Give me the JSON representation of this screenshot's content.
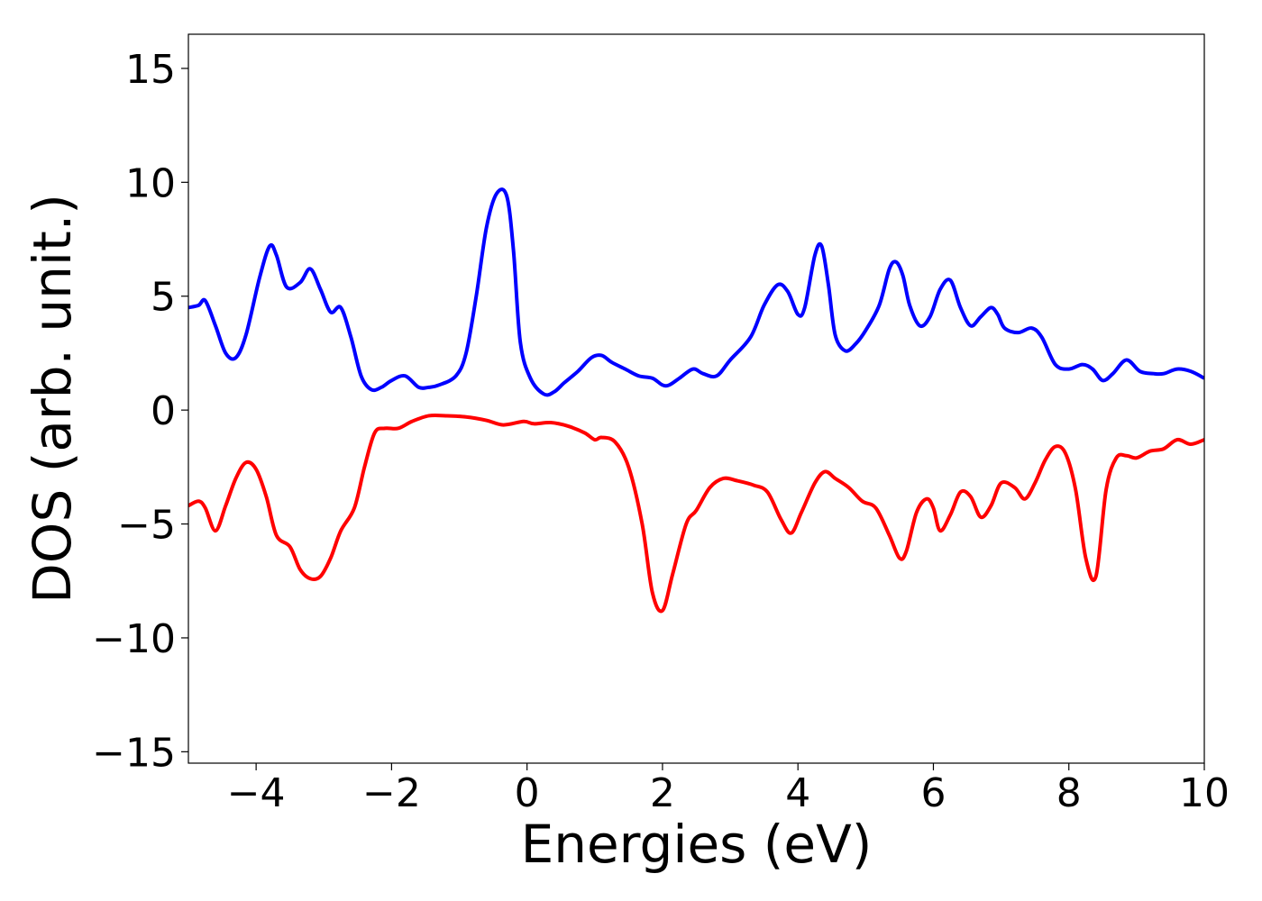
{
  "chart_data": {
    "type": "line",
    "title": "",
    "xlabel": "Energies (eV)",
    "ylabel": "DOS (arb. unit.)",
    "xlim": [
      -5,
      10
    ],
    "ylim": [
      -15.5,
      16.5
    ],
    "grid": false,
    "legend": "none",
    "xticks": [
      {
        "value": -4,
        "label": "−4"
      },
      {
        "value": -2,
        "label": "−2"
      },
      {
        "value": 0,
        "label": "0"
      },
      {
        "value": 2,
        "label": "2"
      },
      {
        "value": 4,
        "label": "4"
      },
      {
        "value": 6,
        "label": "6"
      },
      {
        "value": 8,
        "label": "8"
      },
      {
        "value": 10,
        "label": "10"
      }
    ],
    "yticks": [
      {
        "value": -15,
        "label": "−15"
      },
      {
        "value": -10,
        "label": "−10"
      },
      {
        "value": -5,
        "label": "−5"
      },
      {
        "value": 0,
        "label": "0"
      },
      {
        "value": 5,
        "label": "5"
      },
      {
        "value": 10,
        "label": "10"
      },
      {
        "value": 15,
        "label": "15"
      }
    ],
    "series": [
      {
        "color": "#0000ff",
        "x": [
          -5.0,
          -4.85,
          -4.75,
          -4.6,
          -4.45,
          -4.3,
          -4.15,
          -3.95,
          -3.8,
          -3.7,
          -3.55,
          -3.35,
          -3.2,
          -3.05,
          -2.9,
          -2.75,
          -2.6,
          -2.45,
          -2.3,
          -2.15,
          -2.0,
          -1.8,
          -1.6,
          -1.45,
          -1.3,
          -1.05,
          -0.9,
          -0.75,
          -0.6,
          -0.45,
          -0.3,
          -0.2,
          -0.1,
          0.05,
          0.25,
          0.4,
          0.55,
          0.75,
          0.95,
          1.1,
          1.25,
          1.45,
          1.65,
          1.85,
          2.0,
          2.1,
          2.25,
          2.45,
          2.6,
          2.8,
          3.0,
          3.3,
          3.5,
          3.7,
          3.85,
          4.0,
          4.1,
          4.25,
          4.35,
          4.45,
          4.55,
          4.7,
          4.85,
          5.0,
          5.2,
          5.35,
          5.45,
          5.55,
          5.65,
          5.8,
          5.95,
          6.1,
          6.25,
          6.4,
          6.55,
          6.7,
          6.85,
          6.95,
          7.05,
          7.25,
          7.45,
          7.6,
          7.8,
          8.0,
          8.2,
          8.35,
          8.5,
          8.65,
          8.85,
          9.05,
          9.25,
          9.4,
          9.6,
          9.8,
          10.0
        ],
        "y": [
          4.5,
          4.6,
          4.8,
          3.7,
          2.5,
          2.3,
          3.3,
          5.8,
          7.2,
          6.8,
          5.4,
          5.6,
          6.2,
          5.3,
          4.3,
          4.5,
          3.2,
          1.5,
          0.9,
          1.0,
          1.3,
          1.5,
          1.0,
          1.0,
          1.1,
          1.5,
          2.5,
          5.0,
          8.0,
          9.5,
          9.4,
          7.0,
          3.0,
          1.4,
          0.7,
          0.8,
          1.2,
          1.7,
          2.3,
          2.4,
          2.1,
          1.8,
          1.5,
          1.4,
          1.1,
          1.1,
          1.4,
          1.8,
          1.6,
          1.5,
          2.2,
          3.2,
          4.6,
          5.5,
          5.2,
          4.2,
          4.5,
          6.8,
          7.2,
          5.5,
          3.3,
          2.6,
          2.9,
          3.5,
          4.6,
          6.2,
          6.5,
          5.9,
          4.6,
          3.7,
          4.1,
          5.3,
          5.7,
          4.5,
          3.7,
          4.1,
          4.5,
          4.2,
          3.6,
          3.4,
          3.6,
          3.2,
          2.0,
          1.8,
          2.0,
          1.8,
          1.3,
          1.6,
          2.2,
          1.7,
          1.6,
          1.6,
          1.8,
          1.7,
          1.4
        ]
      },
      {
        "color": "#ff0000",
        "x": [
          -5.0,
          -4.85,
          -4.75,
          -4.6,
          -4.45,
          -4.3,
          -4.15,
          -4.0,
          -3.85,
          -3.7,
          -3.5,
          -3.35,
          -3.2,
          -3.05,
          -2.9,
          -2.75,
          -2.55,
          -2.4,
          -2.25,
          -2.1,
          -1.9,
          -1.7,
          -1.45,
          -1.2,
          -0.9,
          -0.6,
          -0.35,
          -0.05,
          0.1,
          0.35,
          0.6,
          0.85,
          1.0,
          1.1,
          1.3,
          1.5,
          1.7,
          1.85,
          2.0,
          2.15,
          2.35,
          2.5,
          2.7,
          2.9,
          3.1,
          3.35,
          3.55,
          3.75,
          3.9,
          4.05,
          4.25,
          4.4,
          4.55,
          4.75,
          4.95,
          5.15,
          5.35,
          5.5,
          5.6,
          5.75,
          5.9,
          6.0,
          6.1,
          6.25,
          6.4,
          6.55,
          6.7,
          6.85,
          7.0,
          7.2,
          7.35,
          7.5,
          7.65,
          7.8,
          7.95,
          8.1,
          8.25,
          8.4,
          8.55,
          8.7,
          8.85,
          9.0,
          9.2,
          9.4,
          9.6,
          9.8,
          10.0
        ],
        "y": [
          -4.2,
          -4.0,
          -4.3,
          -5.3,
          -4.2,
          -3.0,
          -2.3,
          -2.6,
          -3.8,
          -5.5,
          -6.0,
          -7.0,
          -7.4,
          -7.3,
          -6.5,
          -5.3,
          -4.3,
          -2.5,
          -1.0,
          -0.8,
          -0.8,
          -0.5,
          -0.25,
          -0.25,
          -0.3,
          -0.45,
          -0.65,
          -0.5,
          -0.6,
          -0.55,
          -0.7,
          -1.0,
          -1.3,
          -1.2,
          -1.4,
          -2.5,
          -5.0,
          -8.0,
          -8.8,
          -7.2,
          -5.0,
          -4.4,
          -3.4,
          -3.0,
          -3.1,
          -3.3,
          -3.6,
          -4.8,
          -5.4,
          -4.5,
          -3.2,
          -2.7,
          -3.0,
          -3.4,
          -4.0,
          -4.3,
          -5.5,
          -6.5,
          -6.2,
          -4.5,
          -3.9,
          -4.3,
          -5.3,
          -4.6,
          -3.6,
          -3.8,
          -4.7,
          -4.2,
          -3.2,
          -3.4,
          -3.9,
          -3.2,
          -2.2,
          -1.6,
          -1.9,
          -3.5,
          -6.5,
          -7.3,
          -3.5,
          -2.1,
          -2.0,
          -2.1,
          -1.8,
          -1.7,
          -1.3,
          -1.5,
          -1.3
        ]
      }
    ]
  }
}
